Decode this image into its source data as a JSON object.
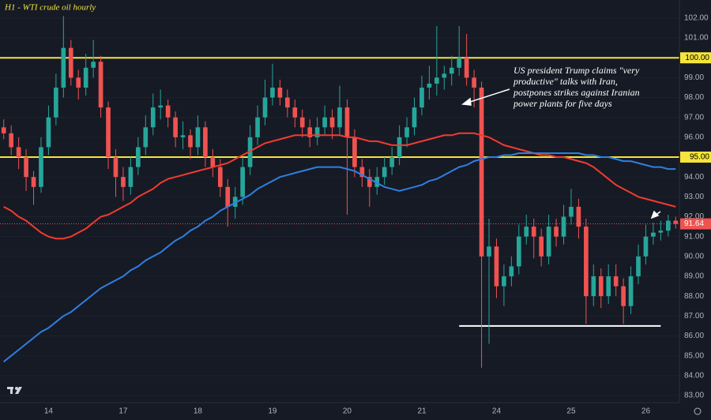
{
  "chart_data": {
    "type": "candlestick",
    "title": "H1 - WTI crude oil hourly",
    "categories": [
      null,
      null,
      null,
      null,
      null,
      null,
      "14",
      null,
      null,
      null,
      null,
      null,
      null,
      null,
      null,
      null,
      "17",
      null,
      null,
      null,
      null,
      null,
      null,
      null,
      null,
      null,
      "18",
      null,
      null,
      null,
      null,
      null,
      null,
      null,
      null,
      null,
      "19",
      null,
      null,
      null,
      null,
      null,
      null,
      null,
      null,
      null,
      "20",
      null,
      null,
      null,
      null,
      null,
      null,
      null,
      null,
      null,
      "21",
      null,
      null,
      null,
      null,
      null,
      null,
      null,
      null,
      null,
      "24",
      null,
      null,
      null,
      null,
      null,
      null,
      null,
      null,
      null,
      "25",
      null,
      null,
      null,
      null,
      null,
      null,
      null,
      null,
      null,
      "26",
      null,
      null,
      null,
      null
    ],
    "ohlc": [
      [
        96.5,
        96.9,
        95.9,
        96.2
      ],
      [
        96.2,
        96.6,
        95.1,
        95.5
      ],
      [
        95.5,
        96.0,
        94.4,
        95.0
      ],
      [
        95.0,
        95.4,
        93.3,
        94.0
      ],
      [
        94.0,
        94.3,
        92.6,
        93.5
      ],
      [
        93.5,
        96.0,
        93.2,
        95.5
      ],
      [
        95.5,
        97.6,
        95.1,
        97.0
      ],
      [
        97.0,
        99.2,
        96.6,
        98.5
      ],
      [
        98.5,
        102.1,
        98.0,
        100.5
      ],
      [
        100.5,
        100.9,
        98.6,
        99.0
      ],
      [
        99.0,
        99.4,
        97.9,
        98.5
      ],
      [
        98.5,
        100.2,
        98.1,
        99.5
      ],
      [
        99.5,
        100.9,
        99.0,
        99.8
      ],
      [
        99.8,
        100.1,
        97.0,
        97.5
      ],
      [
        97.5,
        97.8,
        94.4,
        95.0
      ],
      [
        95.0,
        95.4,
        93.0,
        94.0
      ],
      [
        94.0,
        94.5,
        92.8,
        93.5
      ],
      [
        93.5,
        95.0,
        93.1,
        94.5
      ],
      [
        94.5,
        96.0,
        94.1,
        95.5
      ],
      [
        95.5,
        97.1,
        95.1,
        96.5
      ],
      [
        96.5,
        98.2,
        96.1,
        97.5
      ],
      [
        97.5,
        98.4,
        96.9,
        97.6
      ],
      [
        97.6,
        97.9,
        96.5,
        97.0
      ],
      [
        97.0,
        97.3,
        95.5,
        96.0
      ],
      [
        96.0,
        96.8,
        95.4,
        96.1
      ],
      [
        96.1,
        96.4,
        94.9,
        95.5
      ],
      [
        95.5,
        97.1,
        95.1,
        96.5
      ],
      [
        96.5,
        96.8,
        94.5,
        95.0
      ],
      [
        95.0,
        95.4,
        94.0,
        94.5
      ],
      [
        94.5,
        94.9,
        93.0,
        93.5
      ],
      [
        93.5,
        93.9,
        91.5,
        92.5
      ],
      [
        92.5,
        93.5,
        91.9,
        93.0
      ],
      [
        93.0,
        95.0,
        92.6,
        94.5
      ],
      [
        94.5,
        96.6,
        94.1,
        96.0
      ],
      [
        96.0,
        97.6,
        95.6,
        97.0
      ],
      [
        97.0,
        98.9,
        96.6,
        98.0
      ],
      [
        98.0,
        99.7,
        97.6,
        98.5
      ],
      [
        98.5,
        98.9,
        97.6,
        98.0
      ],
      [
        98.0,
        98.4,
        97.0,
        97.5
      ],
      [
        97.5,
        97.9,
        96.5,
        97.0
      ],
      [
        97.0,
        97.4,
        96.0,
        96.5
      ],
      [
        96.5,
        96.9,
        95.5,
        96.0
      ],
      [
        96.0,
        97.0,
        95.6,
        96.5
      ],
      [
        96.5,
        97.6,
        96.1,
        97.0
      ],
      [
        97.0,
        97.4,
        95.9,
        96.5
      ],
      [
        96.5,
        98.6,
        96.1,
        97.5
      ],
      [
        97.5,
        97.9,
        92.1,
        96.0
      ],
      [
        96.0,
        96.4,
        94.0,
        94.5
      ],
      [
        94.5,
        94.9,
        93.5,
        94.0
      ],
      [
        94.0,
        94.4,
        92.5,
        93.5
      ],
      [
        93.5,
        94.5,
        93.1,
        94.0
      ],
      [
        94.0,
        95.0,
        93.6,
        94.5
      ],
      [
        94.5,
        95.5,
        94.1,
        95.0
      ],
      [
        95.0,
        96.6,
        94.6,
        96.0
      ],
      [
        96.0,
        97.0,
        95.5,
        96.5
      ],
      [
        96.5,
        98.0,
        96.1,
        97.5
      ],
      [
        97.5,
        99.1,
        97.1,
        98.5
      ],
      [
        98.5,
        99.6,
        97.9,
        98.7
      ],
      [
        98.7,
        101.6,
        98.1,
        99.0
      ],
      [
        99.0,
        99.6,
        98.4,
        99.2
      ],
      [
        99.2,
        100.1,
        98.6,
        99.5
      ],
      [
        99.5,
        101.6,
        99.1,
        100.0
      ],
      [
        100.0,
        101.2,
        98.6,
        99.0
      ],
      [
        99.0,
        99.4,
        97.5,
        98.5
      ],
      [
        98.5,
        98.8,
        84.4,
        90.0
      ],
      [
        90.0,
        91.9,
        85.6,
        90.5
      ],
      [
        90.5,
        90.9,
        87.9,
        88.5
      ],
      [
        88.5,
        89.6,
        87.5,
        89.0
      ],
      [
        89.0,
        90.0,
        88.5,
        89.5
      ],
      [
        89.5,
        91.6,
        89.1,
        91.0
      ],
      [
        91.0,
        92.1,
        90.6,
        91.5
      ],
      [
        91.5,
        91.9,
        89.9,
        91.0
      ],
      [
        91.0,
        91.4,
        89.5,
        90.0
      ],
      [
        90.0,
        92.1,
        89.6,
        91.5
      ],
      [
        91.5,
        91.9,
        90.5,
        91.0
      ],
      [
        91.0,
        92.6,
        90.6,
        92.0
      ],
      [
        92.0,
        93.4,
        91.6,
        92.5
      ],
      [
        92.5,
        92.9,
        90.9,
        91.5
      ],
      [
        91.5,
        91.9,
        86.6,
        88.0
      ],
      [
        88.0,
        89.6,
        87.5,
        89.0
      ],
      [
        89.0,
        89.4,
        87.4,
        88.0
      ],
      [
        88.0,
        89.6,
        87.6,
        89.0
      ],
      [
        89.0,
        89.6,
        88.0,
        88.5
      ],
      [
        88.5,
        88.9,
        86.6,
        87.5
      ],
      [
        87.5,
        89.5,
        87.1,
        89.0
      ],
      [
        89.0,
        90.6,
        88.6,
        90.0
      ],
      [
        90.0,
        91.6,
        89.6,
        91.0
      ],
      [
        91.0,
        91.7,
        90.6,
        91.2
      ],
      [
        91.2,
        91.8,
        90.8,
        91.3
      ],
      [
        91.3,
        92.1,
        91.0,
        91.8
      ],
      [
        91.8,
        92.0,
        91.4,
        91.64
      ]
    ],
    "up_color": "#26a69a",
    "down_color": "#ef5350",
    "moving_averages": [
      {
        "color": "#f23b30",
        "values": [
          92.5,
          92.3,
          92.0,
          91.8,
          91.5,
          91.2,
          91.0,
          90.9,
          90.9,
          91.0,
          91.2,
          91.4,
          91.7,
          92.0,
          92.1,
          92.3,
          92.5,
          92.7,
          93.0,
          93.2,
          93.4,
          93.7,
          93.9,
          94.0,
          94.1,
          94.2,
          94.3,
          94.4,
          94.5,
          94.6,
          94.7,
          94.9,
          95.1,
          95.3,
          95.5,
          95.7,
          95.8,
          95.9,
          96.0,
          96.1,
          96.1,
          96.1,
          96.1,
          96.1,
          96.1,
          96.1,
          96.0,
          96.0,
          95.9,
          95.8,
          95.8,
          95.7,
          95.6,
          95.6,
          95.6,
          95.7,
          95.8,
          95.9,
          96.0,
          96.1,
          96.1,
          96.2,
          96.2,
          96.2,
          96.1,
          96.0,
          95.8,
          95.6,
          95.5,
          95.4,
          95.3,
          95.2,
          95.1,
          95.1,
          95.0,
          95.0,
          94.9,
          94.8,
          94.7,
          94.5,
          94.2,
          93.9,
          93.6,
          93.4,
          93.2,
          93.0,
          92.9,
          92.8,
          92.7,
          92.6,
          92.5
        ]
      },
      {
        "color": "#2f7fe0",
        "values": [
          84.7,
          85.0,
          85.3,
          85.6,
          85.9,
          86.2,
          86.4,
          86.7,
          87.0,
          87.2,
          87.5,
          87.8,
          88.1,
          88.4,
          88.6,
          88.8,
          89.0,
          89.3,
          89.5,
          89.8,
          90.0,
          90.2,
          90.5,
          90.8,
          91.0,
          91.3,
          91.5,
          91.8,
          92.0,
          92.3,
          92.5,
          92.7,
          92.9,
          93.1,
          93.4,
          93.6,
          93.8,
          94.0,
          94.1,
          94.2,
          94.3,
          94.4,
          94.5,
          94.5,
          94.5,
          94.5,
          94.4,
          94.3,
          94.1,
          93.9,
          93.7,
          93.5,
          93.4,
          93.3,
          93.4,
          93.5,
          93.6,
          93.8,
          93.9,
          94.1,
          94.3,
          94.5,
          94.6,
          94.8,
          94.9,
          95.0,
          95.0,
          95.1,
          95.1,
          95.2,
          95.2,
          95.2,
          95.2,
          95.2,
          95.2,
          95.2,
          95.2,
          95.2,
          95.1,
          95.1,
          95.0,
          95.0,
          94.9,
          94.8,
          94.8,
          94.7,
          94.6,
          94.5,
          94.5,
          94.4,
          94.4
        ]
      }
    ],
    "hlines": [
      {
        "value": 100,
        "label": "100.00",
        "color": "#f5e53b"
      },
      {
        "value": 95,
        "label": "95.00",
        "color": "#f5e53b"
      }
    ],
    "support": {
      "value": 86.5,
      "x_range": [
        61,
        88
      ],
      "color": "#ffffff"
    },
    "last_price": {
      "value": 91.64,
      "label": "91.64",
      "color": "#ef5350"
    },
    "annotation": [
      "US president Trump claims \"very",
      "productive\" talks with Iran,",
      "postpones strikes against Iranian",
      "power plants for five days"
    ],
    "ylim": [
      82.64,
      102.91
    ],
    "yticks": [
      {
        "value": 83,
        "label": "83.00"
      },
      {
        "value": 84,
        "label": "84.00"
      },
      {
        "value": 85,
        "label": "85.00"
      },
      {
        "value": 86,
        "label": "86.00"
      },
      {
        "value": 87,
        "label": "87.00"
      },
      {
        "value": 88,
        "label": "88.00"
      },
      {
        "value": 89,
        "label": "89.00"
      },
      {
        "value": 90,
        "label": "90.00"
      },
      {
        "value": 91,
        "label": "91.00"
      },
      {
        "value": 92,
        "label": "92.00"
      },
      {
        "value": 93,
        "label": "93.00"
      },
      {
        "value": 94,
        "label": "94.00"
      },
      {
        "value": 95,
        "label": "95.00"
      },
      {
        "value": 96,
        "label": "96.00"
      },
      {
        "value": 97,
        "label": "97.00"
      },
      {
        "value": 98,
        "label": "98.00"
      },
      {
        "value": 99,
        "label": "99.00"
      },
      {
        "value": 100,
        "label": "100.00"
      },
      {
        "value": 101,
        "label": "101.00"
      },
      {
        "value": 102,
        "label": "102.00"
      }
    ],
    "grid": true
  }
}
